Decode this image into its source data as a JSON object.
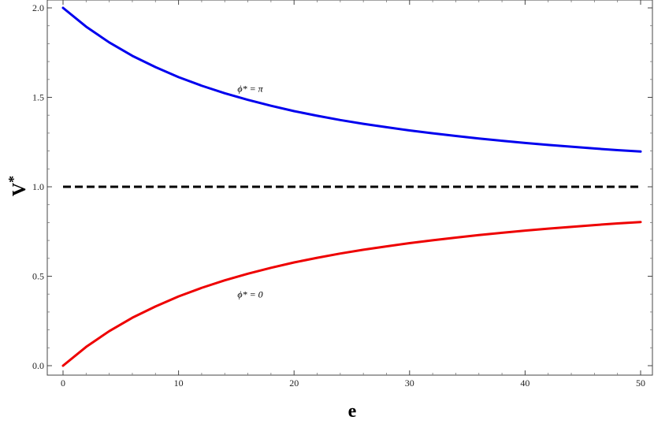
{
  "chart_data": {
    "type": "line",
    "xlabel": "e",
    "ylabel_main": "V",
    "ylabel_sup": "*",
    "xlim": [
      0,
      50
    ],
    "ylim": [
      0,
      2
    ],
    "x_ticks": [
      0,
      10,
      20,
      30,
      40,
      50
    ],
    "x_tick_labels": [
      "0",
      "10",
      "20",
      "30",
      "40",
      "50"
    ],
    "y_ticks": [
      0,
      0.5,
      1,
      1.5,
      2
    ],
    "y_tick_labels": [
      "0.0",
      "0.5",
      "1.0",
      "1.5",
      "2.0"
    ],
    "grid": false,
    "series": [
      {
        "color": "#0000ee",
        "style": "solid",
        "x": [
          0,
          2,
          4,
          6,
          8,
          10,
          12,
          14,
          16,
          18,
          20,
          22,
          24,
          26,
          28,
          30,
          32,
          34,
          36,
          38,
          40,
          42,
          44,
          46,
          48,
          50
        ],
        "y": [
          2.0,
          1.895,
          1.807,
          1.732,
          1.669,
          1.613,
          1.565,
          1.523,
          1.486,
          1.453,
          1.423,
          1.397,
          1.373,
          1.352,
          1.333,
          1.315,
          1.299,
          1.284,
          1.27,
          1.257,
          1.245,
          1.234,
          1.224,
          1.214,
          1.205,
          1.197
        ]
      },
      {
        "color": "#ee0000",
        "style": "solid",
        "x": [
          0,
          2,
          4,
          6,
          8,
          10,
          12,
          14,
          16,
          18,
          20,
          22,
          24,
          26,
          28,
          30,
          32,
          34,
          36,
          38,
          40,
          42,
          44,
          46,
          48,
          50
        ],
        "y": [
          0.0,
          0.105,
          0.193,
          0.268,
          0.331,
          0.387,
          0.435,
          0.477,
          0.514,
          0.547,
          0.577,
          0.603,
          0.627,
          0.648,
          0.667,
          0.685,
          0.701,
          0.716,
          0.73,
          0.743,
          0.755,
          0.766,
          0.776,
          0.786,
          0.795,
          0.803
        ]
      },
      {
        "color": "#000000",
        "style": "dashed",
        "x": [
          0,
          50
        ],
        "y": [
          1,
          1
        ]
      }
    ],
    "annotations": [
      {
        "text": "ϕ* = π",
        "x": 15.1,
        "y": 1.53
      },
      {
        "text": "ϕ* = 0",
        "x": 15.1,
        "y": 0.38
      }
    ]
  }
}
